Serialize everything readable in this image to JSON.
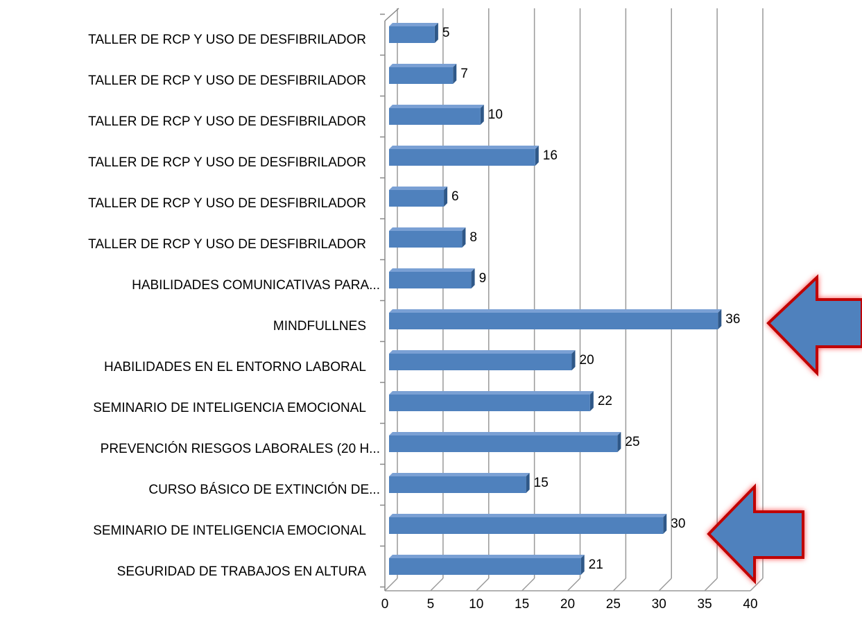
{
  "chart_data": {
    "type": "bar",
    "orientation": "horizontal",
    "categories": [
      "TALLER DE RCP Y USO DE DESFIBRILADOR",
      "TALLER DE RCP Y USO DE DESFIBRILADOR",
      "TALLER DE RCP Y USO DE DESFIBRILADOR",
      "TALLER DE RCP Y USO DE DESFIBRILADOR",
      "TALLER DE RCP Y USO DE DESFIBRILADOR",
      "TALLER DE RCP Y USO DE DESFIBRILADOR",
      "HABILIDADES COMUNICATIVAS PARA...",
      "MINDFULLNES",
      "HABILIDADES EN EL ENTORNO LABORAL",
      "SEMINARIO DE INTELIGENCIA EMOCIONAL",
      "PREVENCIÓN RIESGOS LABORALES (20 H...",
      "CURSO BÁSICO DE EXTINCIÓN DE...",
      "SEMINARIO DE INTELIGENCIA EMOCIONAL",
      "SEGURIDAD DE TRABAJOS EN ALTURA"
    ],
    "values": [
      5,
      7,
      10,
      16,
      6,
      8,
      9,
      36,
      20,
      22,
      25,
      15,
      30,
      21
    ],
    "color": "#4f81bd",
    "xlim": [
      0,
      40
    ],
    "xticks": [
      0,
      5,
      10,
      15,
      20,
      25,
      30,
      35,
      40
    ],
    "grid": true
  }
}
